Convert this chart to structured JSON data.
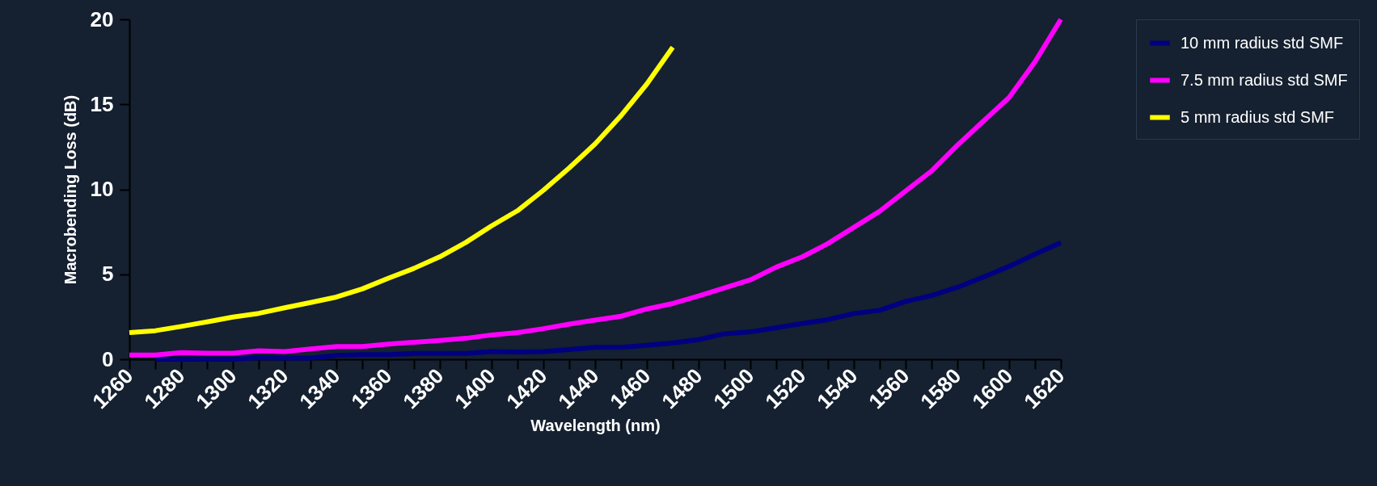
{
  "chart_data": {
    "type": "line",
    "xlabel": "Wavelength (nm)",
    "ylabel": "Macrobending Loss (dB)",
    "x": [
      1260,
      1270,
      1280,
      1290,
      1300,
      1310,
      1320,
      1330,
      1340,
      1350,
      1360,
      1370,
      1380,
      1390,
      1400,
      1410,
      1420,
      1430,
      1440,
      1450,
      1460,
      1470,
      1480,
      1490,
      1500,
      1510,
      1520,
      1530,
      1540,
      1550,
      1560,
      1570,
      1580,
      1590,
      1600,
      1610,
      1620
    ],
    "series": [
      {
        "name": "10 mm radius std SMF",
        "color": "#000080",
        "values": [
          null,
          0,
          0,
          0,
          0,
          0.1,
          0.07,
          0.07,
          0.23,
          0.27,
          0.27,
          0.34,
          0.34,
          0.34,
          0.45,
          0.43,
          0.45,
          0.57,
          0.7,
          0.7,
          0.82,
          0.96,
          1.15,
          1.5,
          1.61,
          1.85,
          2.1,
          2.33,
          2.69,
          2.88,
          3.4,
          3.75,
          4.23,
          4.83,
          5.46,
          6.18,
          6.86
        ]
      },
      {
        "name": "7.5 mm radius std SMF",
        "color": "#ff00ff",
        "values": [
          0.25,
          0.25,
          0.39,
          0.36,
          0.36,
          0.5,
          0.45,
          0.61,
          0.75,
          0.75,
          0.89,
          1.0,
          1.11,
          1.23,
          1.43,
          1.57,
          1.8,
          2.07,
          2.3,
          2.53,
          2.96,
          3.28,
          3.72,
          4.2,
          4.67,
          5.42,
          6.02,
          6.81,
          7.76,
          8.71,
          9.9,
          11.08,
          12.59,
          14.0,
          15.4,
          17.5,
          20
        ]
      },
      {
        "name": "5 mm radius std SMF",
        "color": "#ffff00",
        "values": [
          1.57,
          1.68,
          1.93,
          2.2,
          2.48,
          2.7,
          3.03,
          3.34,
          3.66,
          4.14,
          4.76,
          5.35,
          6.03,
          6.87,
          7.85,
          8.74,
          9.94,
          11.26,
          12.67,
          14.33,
          16.2,
          18.36,
          null,
          null,
          null,
          null,
          null,
          null,
          null,
          null,
          null,
          null,
          null,
          null,
          null,
          null,
          null
        ]
      }
    ],
    "xlim": [
      1260,
      1620
    ],
    "xticks": [
      1260,
      {
        "value": 1270,
        "label": null
      },
      1280,
      {
        "value": 1290,
        "label": null
      },
      1300,
      {
        "value": 1310,
        "label": null
      },
      1320,
      {
        "value": 1330,
        "label": null
      },
      1340,
      {
        "value": 1350,
        "label": null
      },
      1360,
      {
        "value": 1370,
        "label": null
      },
      1380,
      {
        "value": 1390,
        "label": null
      },
      1400,
      {
        "value": 1410,
        "label": null
      },
      1420,
      {
        "value": 1430,
        "label": null
      },
      1440,
      {
        "value": 1450,
        "label": null
      },
      1460,
      {
        "value": 1470,
        "label": null
      },
      1480,
      {
        "value": 1490,
        "label": null
      },
      1500,
      {
        "value": 1510,
        "label": null
      },
      1520,
      {
        "value": 1530,
        "label": null
      },
      1540,
      {
        "value": 1550,
        "label": null
      },
      1560,
      {
        "value": 1570,
        "label": null
      },
      1580,
      {
        "value": 1590,
        "label": null
      },
      1600,
      {
        "value": 1610,
        "label": null
      },
      1620
    ],
    "ylim": [
      0,
      20
    ],
    "yticks": [
      0,
      5,
      10,
      15,
      20
    ],
    "grid": false,
    "legend": "right",
    "line_style": "solid",
    "marker": "none"
  }
}
